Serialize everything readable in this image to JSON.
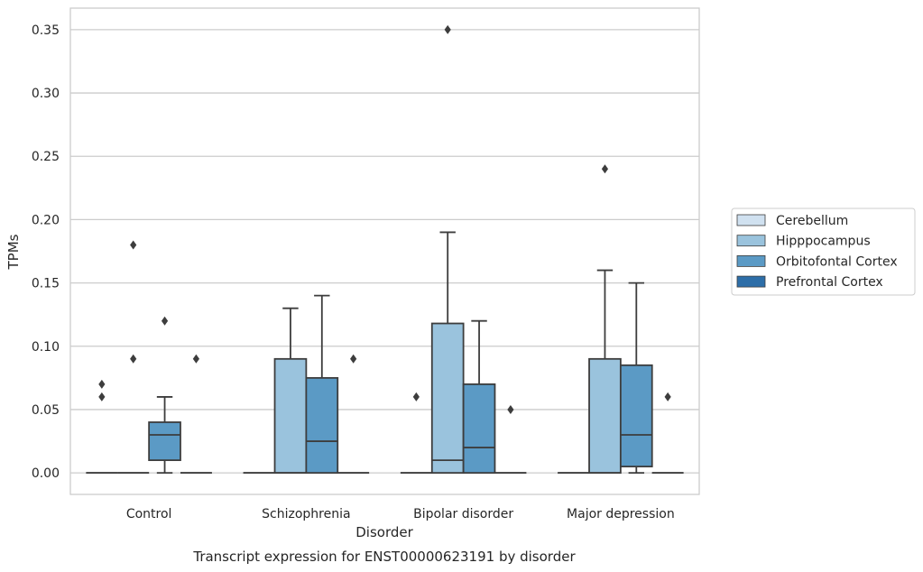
{
  "chart_data": {
    "type": "boxplot",
    "title": "",
    "caption": "Transcript expression for ENST00000623191 by disorder",
    "xlabel": "Disorder",
    "ylabel": "TPMs",
    "ylim": [
      -0.017,
      0.367
    ],
    "yticks": [
      0.0,
      0.05,
      0.1,
      0.15,
      0.2,
      0.25,
      0.3,
      0.35
    ],
    "ytick_labels": [
      "0.00",
      "0.05",
      "0.10",
      "0.15",
      "0.20",
      "0.25",
      "0.30",
      "0.35"
    ],
    "grid": true,
    "legend_position": "right",
    "categories": [
      "Control",
      "Schizophrenia",
      "Bipolar disorder",
      "Major depression"
    ],
    "series": [
      {
        "name": "Cerebellum",
        "color": "#d0e1f0",
        "boxes": [
          {
            "q1": 0,
            "median": 0,
            "q3": 0,
            "whisker_low": 0,
            "whisker_high": 0,
            "outliers": [
              0.06,
              0.07
            ]
          },
          {
            "q1": 0,
            "median": 0,
            "q3": 0,
            "whisker_low": 0,
            "whisker_high": 0,
            "outliers": []
          },
          {
            "q1": 0,
            "median": 0,
            "q3": 0,
            "whisker_low": 0,
            "whisker_high": 0,
            "outliers": [
              0.06
            ]
          },
          {
            "q1": 0,
            "median": 0,
            "q3": 0,
            "whisker_low": 0,
            "whisker_high": 0,
            "outliers": []
          }
        ]
      },
      {
        "name": "Hipppocampus",
        "color": "#9ac3dd",
        "boxes": [
          {
            "q1": 0,
            "median": 0,
            "q3": 0,
            "whisker_low": 0,
            "whisker_high": 0,
            "outliers": [
              0.09,
              0.18
            ]
          },
          {
            "q1": 0,
            "median": 0,
            "q3": 0.09,
            "whisker_low": 0,
            "whisker_high": 0.13,
            "outliers": []
          },
          {
            "q1": 0,
            "median": 0.01,
            "q3": 0.118,
            "whisker_low": 0,
            "whisker_high": 0.19,
            "outliers": [
              0.35
            ]
          },
          {
            "q1": 0,
            "median": 0,
            "q3": 0.09,
            "whisker_low": 0,
            "whisker_high": 0.16,
            "outliers": [
              0.24
            ]
          }
        ]
      },
      {
        "name": "Orbitofontal Cortex",
        "color": "#5b9ac5",
        "boxes": [
          {
            "q1": 0.01,
            "median": 0.03,
            "q3": 0.04,
            "whisker_low": 0,
            "whisker_high": 0.06,
            "outliers": [
              0.12
            ]
          },
          {
            "q1": 0,
            "median": 0.025,
            "q3": 0.075,
            "whisker_low": 0,
            "whisker_high": 0.14,
            "outliers": []
          },
          {
            "q1": 0,
            "median": 0.02,
            "q3": 0.07,
            "whisker_low": 0,
            "whisker_high": 0.12,
            "outliers": []
          },
          {
            "q1": 0.005,
            "median": 0.03,
            "q3": 0.085,
            "whisker_low": 0,
            "whisker_high": 0.15,
            "outliers": []
          }
        ]
      },
      {
        "name": "Prefrontal Cortex",
        "color": "#2d6ea8",
        "boxes": [
          {
            "q1": 0,
            "median": 0,
            "q3": 0,
            "whisker_low": 0,
            "whisker_high": 0,
            "outliers": [
              0.09
            ]
          },
          {
            "q1": 0,
            "median": 0,
            "q3": 0,
            "whisker_low": 0,
            "whisker_high": 0,
            "outliers": [
              0.09
            ]
          },
          {
            "q1": 0,
            "median": 0,
            "q3": 0,
            "whisker_low": 0,
            "whisker_high": 0,
            "outliers": [
              0.05
            ]
          },
          {
            "q1": 0,
            "median": 0,
            "q3": 0,
            "whisker_low": 0,
            "whisker_high": 0,
            "outliers": [
              0.06
            ]
          }
        ]
      }
    ]
  }
}
